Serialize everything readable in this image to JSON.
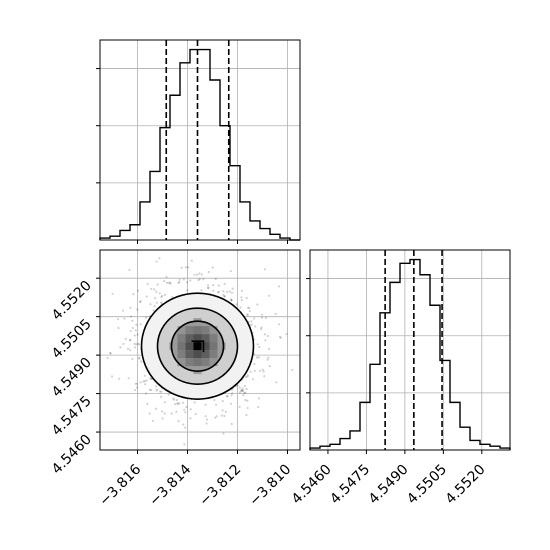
{
  "chart_data": [
    {
      "panel": "top-left",
      "type": "bar",
      "description_of_type": "histogram",
      "xlim": [
        -3.8175,
        -3.8095
      ],
      "bin_start": -3.8175,
      "bin_width": 0.0004,
      "counts": [
        1,
        2,
        5,
        8,
        20,
        36,
        59,
        76,
        93,
        100,
        100,
        84,
        60,
        39,
        20,
        10,
        6,
        3,
        1,
        0
      ],
      "ylim": [
        0,
        105
      ],
      "quantiles": [
        -3.81485,
        -3.8136,
        -3.81235
      ],
      "grid": true
    },
    {
      "panel": "bottom-left",
      "type": "scatter",
      "description_of_type": "2d density with contours",
      "xlim": [
        -3.8175,
        -3.8095
      ],
      "ylim": [
        4.5453,
        4.5531
      ],
      "x_center": -3.8136,
      "y_center": 4.54935,
      "xticks": [
        "−3.816",
        "−3.814",
        "−3.812",
        "−3.810"
      ],
      "yticks": [
        "4.5460",
        "4.5475",
        "4.5490",
        "4.5505",
        "4.5520"
      ],
      "xtick_values": [
        -3.816,
        -3.814,
        -3.812,
        -3.81
      ],
      "ytick_values": [
        4.546,
        4.5475,
        4.549,
        4.5505,
        4.552
      ],
      "grid": true
    },
    {
      "panel": "bottom-right",
      "type": "bar",
      "description_of_type": "histogram",
      "xlim": [
        4.5453,
        4.5531
      ],
      "bin_start": 4.5453,
      "bin_width": 0.00039,
      "counts": [
        1,
        2,
        3,
        6,
        10,
        25,
        45,
        72,
        88,
        98,
        100,
        92,
        76,
        47,
        25,
        12,
        5,
        3,
        2,
        1
      ],
      "ylim": [
        0,
        105
      ],
      "quantiles": [
        4.54823,
        4.54935,
        4.55045
      ],
      "xticks": [
        "4.5460",
        "4.5475",
        "4.5490",
        "4.5505",
        "4.5520"
      ],
      "xtick_values": [
        4.546,
        4.5475,
        4.549,
        4.5505,
        4.552
      ],
      "grid": true
    }
  ]
}
